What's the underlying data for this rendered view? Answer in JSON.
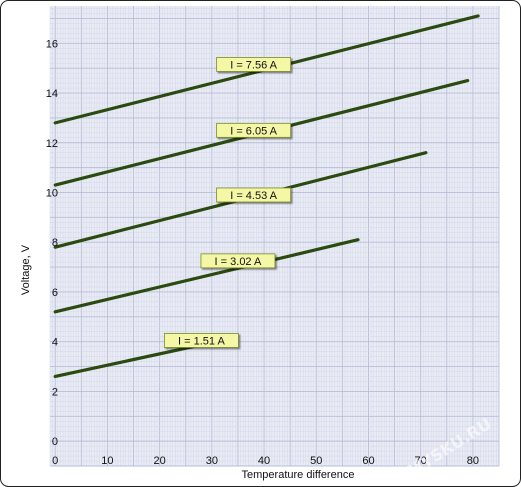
{
  "chart_data": {
    "type": "line",
    "xlabel": "Temperature difference",
    "ylabel": "Voltage, V",
    "xlim": [
      -1,
      85
    ],
    "ylim": [
      -1,
      17.5
    ],
    "x_ticks": [
      0,
      10,
      20,
      30,
      40,
      50,
      60,
      70,
      80
    ],
    "y_ticks": [
      0,
      2,
      4,
      6,
      8,
      10,
      12,
      14,
      16
    ],
    "grid": true,
    "series": [
      {
        "name": "I = 1.51 A",
        "x": [
          0,
          33
        ],
        "y": [
          2.6,
          4.1
        ],
        "label_at": [
          28,
          4.05
        ]
      },
      {
        "name": "I = 3.02 A",
        "x": [
          0,
          58
        ],
        "y": [
          5.2,
          8.1
        ],
        "label_at": [
          35,
          7.25
        ]
      },
      {
        "name": "I = 4.53 A",
        "x": [
          0,
          71
        ],
        "y": [
          7.8,
          11.6
        ],
        "label_at": [
          38,
          9.9
        ]
      },
      {
        "name": "I = 6.05 A",
        "x": [
          0,
          79
        ],
        "y": [
          10.3,
          14.5
        ],
        "label_at": [
          38,
          12.5
        ]
      },
      {
        "name": "I = 7.56 A",
        "x": [
          0,
          81
        ],
        "y": [
          12.8,
          17.1
        ],
        "label_at": [
          38,
          15.15
        ]
      }
    ],
    "colors": {
      "line": "#2a4a10",
      "grid_major": "#b8bdd6",
      "grid_minor": "#d2d6e8",
      "plot_background": "#eaecf5",
      "label_background": "#f4f7a6",
      "label_border": "#7a8a2a",
      "frame": "#222222"
    },
    "watermark": "MYSKU.RU"
  }
}
